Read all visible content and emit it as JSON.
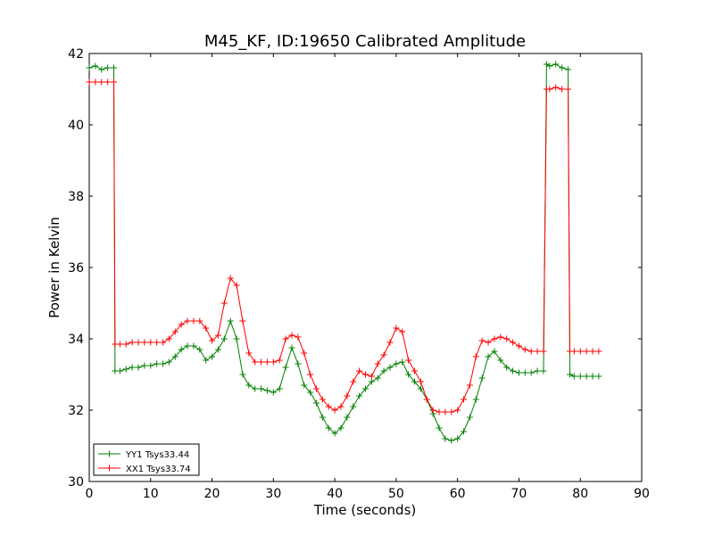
{
  "chart_data": {
    "type": "line",
    "title": "M45_KF, ID:19650 Calibrated Amplitude",
    "xlabel": "Time (seconds)",
    "ylabel": "Power in Kelvin",
    "xlim": [
      0,
      90
    ],
    "ylim": [
      30,
      42
    ],
    "xticks": [
      0,
      10,
      20,
      30,
      40,
      50,
      60,
      70,
      80,
      90
    ],
    "yticks": [
      30,
      32,
      34,
      36,
      38,
      40,
      42
    ],
    "grid": false,
    "legend_position": "lower-left",
    "marker": "+",
    "series": [
      {
        "name": "YY1 Tsys33.44",
        "color": "#008000",
        "points": [
          [
            0,
            41.6
          ],
          [
            1,
            41.65
          ],
          [
            2,
            41.55
          ],
          [
            3,
            41.6
          ],
          [
            4,
            41.6
          ],
          [
            4.2,
            33.1
          ],
          [
            5,
            33.1
          ],
          [
            6,
            33.15
          ],
          [
            7,
            33.2
          ],
          [
            8,
            33.2
          ],
          [
            9,
            33.25
          ],
          [
            10,
            33.25
          ],
          [
            11,
            33.3
          ],
          [
            12,
            33.3
          ],
          [
            13,
            33.35
          ],
          [
            14,
            33.5
          ],
          [
            15,
            33.7
          ],
          [
            16,
            33.8
          ],
          [
            17,
            33.8
          ],
          [
            18,
            33.7
          ],
          [
            19,
            33.4
          ],
          [
            20,
            33.5
          ],
          [
            21,
            33.7
          ],
          [
            22,
            34.0
          ],
          [
            23,
            34.5
          ],
          [
            24,
            34.0
          ],
          [
            25,
            33.0
          ],
          [
            26,
            32.7
          ],
          [
            27,
            32.6
          ],
          [
            28,
            32.6
          ],
          [
            29,
            32.55
          ],
          [
            30,
            32.5
          ],
          [
            31,
            32.6
          ],
          [
            32,
            33.2
          ],
          [
            33,
            33.75
          ],
          [
            34,
            33.3
          ],
          [
            35,
            32.7
          ],
          [
            36,
            32.5
          ],
          [
            37,
            32.2
          ],
          [
            38,
            31.8
          ],
          [
            39,
            31.5
          ],
          [
            40,
            31.35
          ],
          [
            41,
            31.5
          ],
          [
            42,
            31.8
          ],
          [
            43,
            32.1
          ],
          [
            44,
            32.4
          ],
          [
            45,
            32.6
          ],
          [
            46,
            32.8
          ],
          [
            47,
            32.9
          ],
          [
            48,
            33.1
          ],
          [
            49,
            33.2
          ],
          [
            50,
            33.3
          ],
          [
            51,
            33.35
          ],
          [
            52,
            33.0
          ],
          [
            53,
            32.8
          ],
          [
            54,
            32.6
          ],
          [
            55,
            32.3
          ],
          [
            56,
            31.9
          ],
          [
            57,
            31.5
          ],
          [
            58,
            31.2
          ],
          [
            59,
            31.15
          ],
          [
            60,
            31.2
          ],
          [
            61,
            31.4
          ],
          [
            62,
            31.8
          ],
          [
            63,
            32.3
          ],
          [
            64,
            32.9
          ],
          [
            65,
            33.5
          ],
          [
            66,
            33.65
          ],
          [
            67,
            33.4
          ],
          [
            68,
            33.2
          ],
          [
            69,
            33.1
          ],
          [
            70,
            33.05
          ],
          [
            71,
            33.05
          ],
          [
            72,
            33.05
          ],
          [
            73,
            33.1
          ],
          [
            74,
            33.1
          ],
          [
            74.5,
            41.7
          ],
          [
            75,
            41.65
          ],
          [
            76,
            41.7
          ],
          [
            77,
            41.6
          ],
          [
            78,
            41.55
          ],
          [
            78.3,
            33.0
          ],
          [
            79,
            32.95
          ],
          [
            80,
            32.95
          ],
          [
            81,
            32.95
          ],
          [
            82,
            32.95
          ],
          [
            83,
            32.95
          ]
        ]
      },
      {
        "name": "XX1 Tsys33.74",
        "color": "#ff0000",
        "points": [
          [
            0,
            41.2
          ],
          [
            1,
            41.2
          ],
          [
            2,
            41.2
          ],
          [
            3,
            41.2
          ],
          [
            4,
            41.2
          ],
          [
            4.2,
            33.85
          ],
          [
            5,
            33.85
          ],
          [
            6,
            33.85
          ],
          [
            7,
            33.9
          ],
          [
            8,
            33.9
          ],
          [
            9,
            33.9
          ],
          [
            10,
            33.9
          ],
          [
            11,
            33.9
          ],
          [
            12,
            33.9
          ],
          [
            13,
            34.0
          ],
          [
            14,
            34.2
          ],
          [
            15,
            34.4
          ],
          [
            16,
            34.5
          ],
          [
            17,
            34.5
          ],
          [
            18,
            34.5
          ],
          [
            19,
            34.3
          ],
          [
            20,
            33.95
          ],
          [
            21,
            34.1
          ],
          [
            22,
            35.0
          ],
          [
            23,
            35.7
          ],
          [
            24,
            35.5
          ],
          [
            25,
            34.5
          ],
          [
            26,
            33.6
          ],
          [
            27,
            33.35
          ],
          [
            28,
            33.35
          ],
          [
            29,
            33.35
          ],
          [
            30,
            33.35
          ],
          [
            31,
            33.4
          ],
          [
            32,
            34.0
          ],
          [
            33,
            34.1
          ],
          [
            34,
            34.05
          ],
          [
            35,
            33.6
          ],
          [
            36,
            33.0
          ],
          [
            37,
            32.6
          ],
          [
            38,
            32.3
          ],
          [
            39,
            32.1
          ],
          [
            40,
            32.0
          ],
          [
            41,
            32.1
          ],
          [
            42,
            32.4
          ],
          [
            43,
            32.8
          ],
          [
            44,
            33.1
          ],
          [
            45,
            33.0
          ],
          [
            46,
            32.95
          ],
          [
            47,
            33.3
          ],
          [
            48,
            33.55
          ],
          [
            49,
            33.9
          ],
          [
            50,
            34.3
          ],
          [
            51,
            34.2
          ],
          [
            52,
            33.4
          ],
          [
            53,
            33.1
          ],
          [
            54,
            32.8
          ],
          [
            55,
            32.3
          ],
          [
            56,
            32.0
          ],
          [
            57,
            31.95
          ],
          [
            58,
            31.95
          ],
          [
            59,
            31.95
          ],
          [
            60,
            32.0
          ],
          [
            61,
            32.3
          ],
          [
            62,
            32.7
          ],
          [
            63,
            33.5
          ],
          [
            64,
            33.95
          ],
          [
            65,
            33.9
          ],
          [
            66,
            34.0
          ],
          [
            67,
            34.05
          ],
          [
            68,
            34.0
          ],
          [
            69,
            33.9
          ],
          [
            70,
            33.8
          ],
          [
            71,
            33.7
          ],
          [
            72,
            33.65
          ],
          [
            73,
            33.65
          ],
          [
            74,
            33.65
          ],
          [
            74.5,
            41.0
          ],
          [
            75,
            41.0
          ],
          [
            76,
            41.05
          ],
          [
            77,
            41.0
          ],
          [
            78,
            41.0
          ],
          [
            78.3,
            33.65
          ],
          [
            79,
            33.65
          ],
          [
            80,
            33.65
          ],
          [
            81,
            33.65
          ],
          [
            82,
            33.65
          ],
          [
            83,
            33.65
          ]
        ]
      }
    ]
  }
}
